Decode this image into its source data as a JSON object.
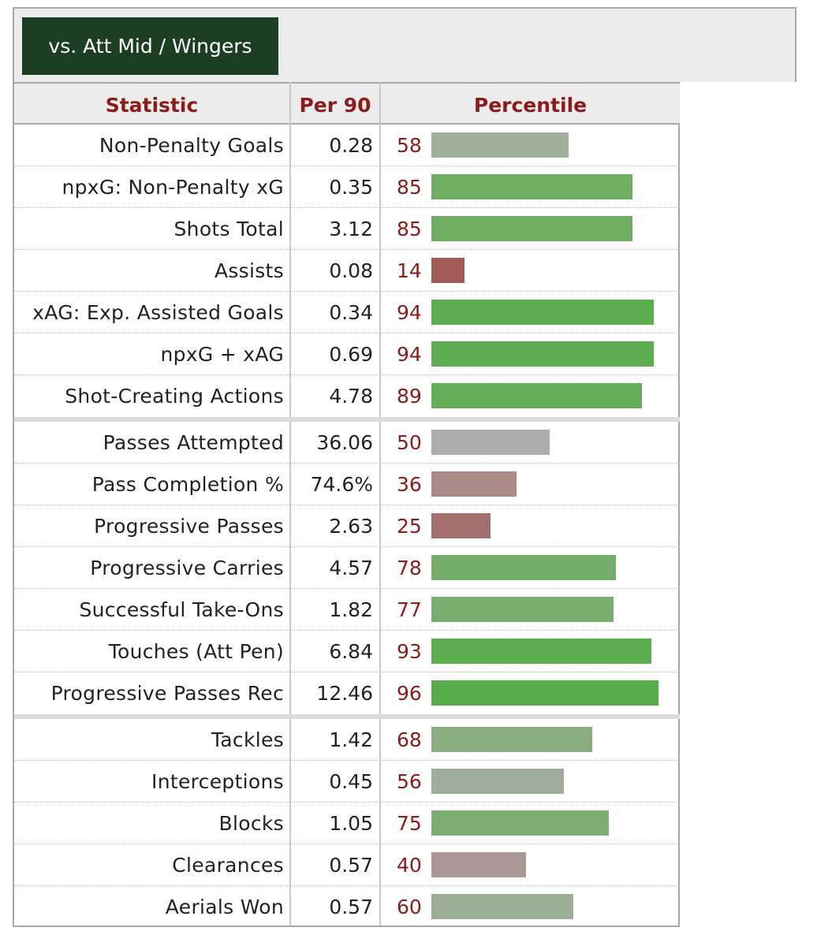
{
  "tab": {
    "label": "vs. Att Mid / Wingers"
  },
  "table": {
    "headers": {
      "statistic": "Statistic",
      "per90": "Per 90",
      "percentile": "Percentile"
    },
    "groups": [
      [
        {
          "stat": "Non-Penalty Goals",
          "per90": "0.28",
          "pct": "58",
          "color": "#9fb09a"
        },
        {
          "stat": "npxG: Non-Penalty xG",
          "per90": "0.35",
          "pct": "85",
          "color": "#6fae63"
        },
        {
          "stat": "Shots Total",
          "per90": "3.12",
          "pct": "85",
          "color": "#6fae63"
        },
        {
          "stat": "Assists",
          "per90": "0.08",
          "pct": "14",
          "color": "#a35b58"
        },
        {
          "stat": "xAG: Exp. Assisted Goals",
          "per90": "0.34",
          "pct": "94",
          "color": "#5cad4f"
        },
        {
          "stat": "npxG + xAG",
          "per90": "0.69",
          "pct": "94",
          "color": "#5cad4f"
        },
        {
          "stat": "Shot-Creating Actions",
          "per90": "4.78",
          "pct": "89",
          "color": "#63ae57"
        }
      ],
      [
        {
          "stat": "Passes Attempted",
          "per90": "36.06",
          "pct": "50",
          "color": "#adadad"
        },
        {
          "stat": "Pass Completion %",
          "per90": "74.6%",
          "pct": "36",
          "color": "#ab8a88"
        },
        {
          "stat": "Progressive Passes",
          "per90": "2.63",
          "pct": "25",
          "color": "#a3706d"
        },
        {
          "stat": "Progressive Carries",
          "per90": "4.57",
          "pct": "78",
          "color": "#77ad6c"
        },
        {
          "stat": "Successful Take-Ons",
          "per90": "1.82",
          "pct": "77",
          "color": "#79ad6f"
        },
        {
          "stat": "Touches (Att Pen)",
          "per90": "6.84",
          "pct": "93",
          "color": "#5cad4f"
        },
        {
          "stat": "Progressive Passes Rec",
          "per90": "12.46",
          "pct": "96",
          "color": "#57ab4a"
        }
      ],
      [
        {
          "stat": "Tackles",
          "per90": "1.42",
          "pct": "68",
          "color": "#8aae82"
        },
        {
          "stat": "Interceptions",
          "per90": "0.45",
          "pct": "56",
          "color": "#9fae9b"
        },
        {
          "stat": "Blocks",
          "per90": "1.05",
          "pct": "75",
          "color": "#7cad72"
        },
        {
          "stat": "Clearances",
          "per90": "0.57",
          "pct": "40",
          "color": "#ab9896"
        },
        {
          "stat": "Aerials Won",
          "per90": "0.57",
          "pct": "60",
          "color": "#9aaf95"
        }
      ]
    ]
  }
}
